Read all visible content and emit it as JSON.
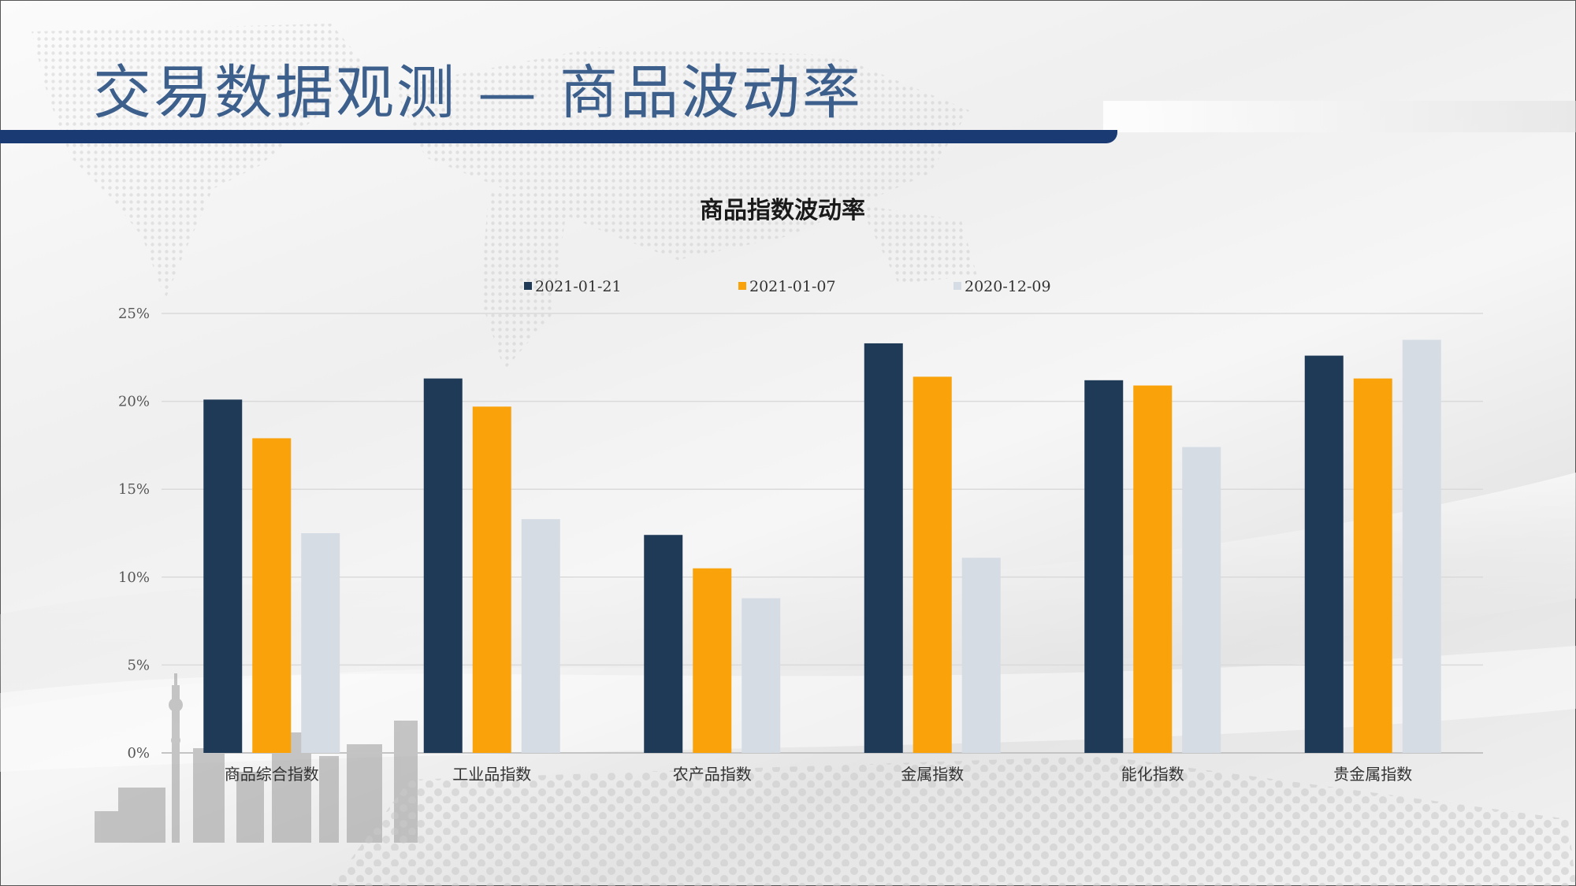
{
  "slide": {
    "title": "交易数据观测 — 商品波动率"
  },
  "colors": {
    "header_bar": "#1a3a73",
    "title_text": "#3d5f8c",
    "series": [
      "#1f3a56",
      "#f9a20a",
      "#d5dce4"
    ]
  },
  "chart_data": {
    "type": "bar",
    "title": "商品指数波动率",
    "categories": [
      "商品综合指数",
      "工业品指数",
      "农产品指数",
      "金属指数",
      "能化指数",
      "贵金属指数"
    ],
    "series": [
      {
        "name": "2021-01-21",
        "values": [
          20.1,
          21.3,
          12.4,
          23.3,
          21.2,
          22.6
        ]
      },
      {
        "name": "2021-01-07",
        "values": [
          17.9,
          19.7,
          10.5,
          21.4,
          20.9,
          21.3
        ]
      },
      {
        "name": "2020-12-09",
        "values": [
          12.5,
          13.3,
          8.8,
          11.1,
          17.4,
          23.5
        ]
      }
    ],
    "ylim": [
      0,
      25
    ],
    "yticks": [
      0,
      5,
      10,
      15,
      20,
      25
    ],
    "ytick_labels": [
      "0%",
      "5%",
      "10%",
      "15%",
      "20%",
      "25%"
    ],
    "legend_position": "top",
    "grid": true
  }
}
